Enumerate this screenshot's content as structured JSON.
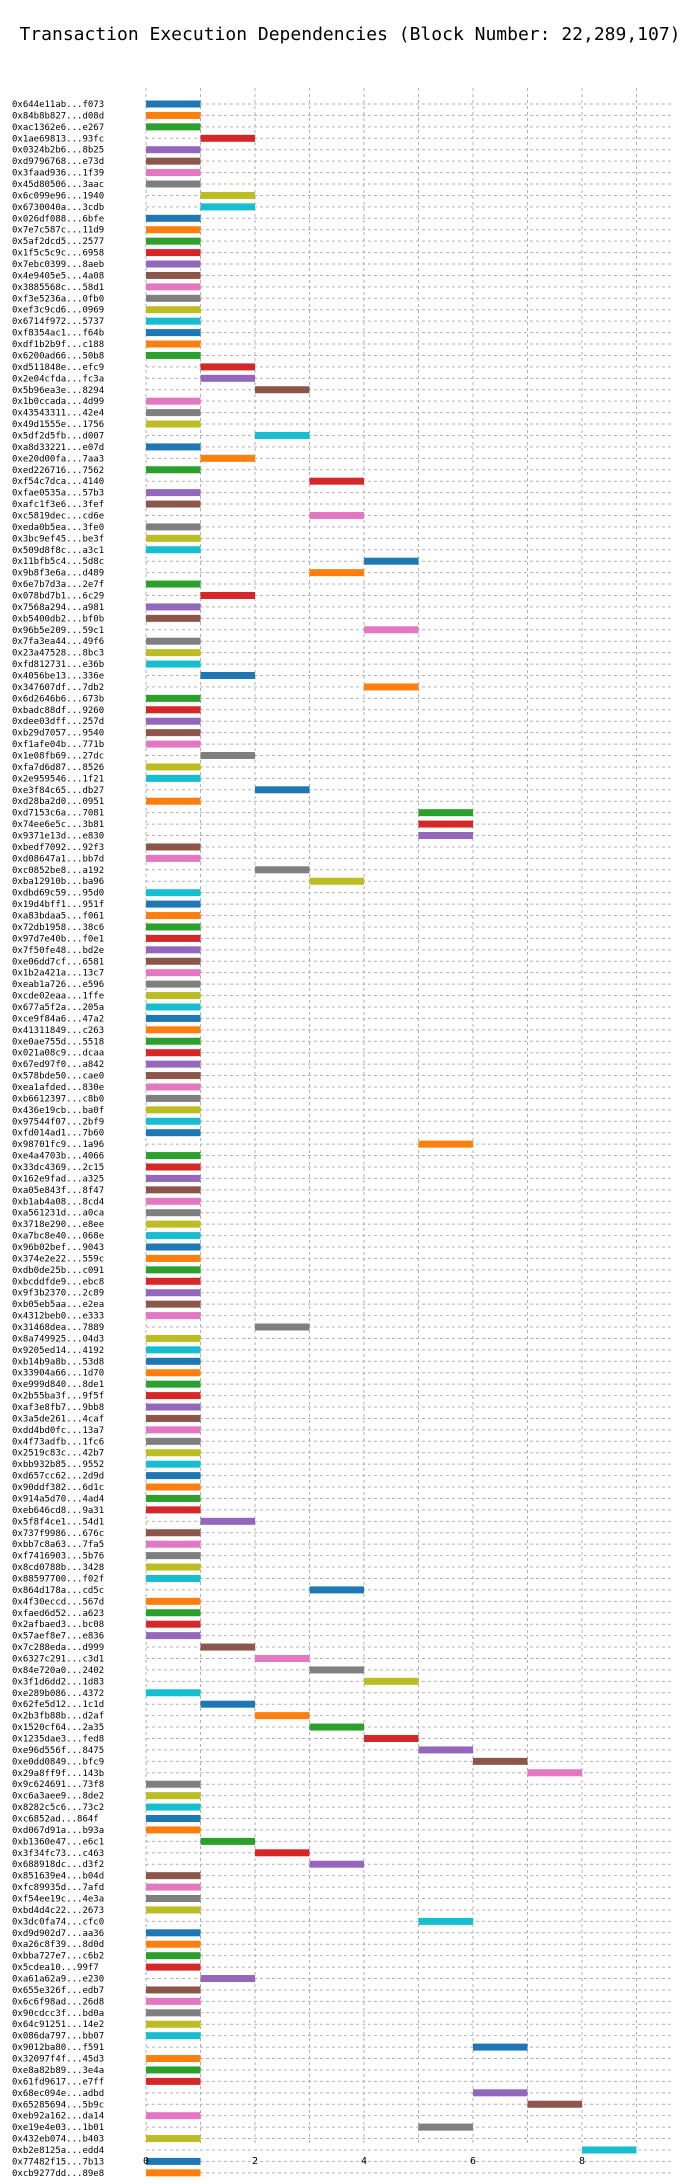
{
  "chart_data": {
    "type": "bar",
    "orientation": "horizontal-gantt",
    "title": "Transaction Execution Dependencies (Block Number: 22,289,107)",
    "xlabel": "",
    "ylabel": "",
    "xlim": [
      0,
      9.5
    ],
    "xticks": [
      0,
      2,
      4,
      6,
      8
    ],
    "grid": true,
    "palette": [
      "#1f77b4",
      "#ff7f0e",
      "#2ca02c",
      "#d62728",
      "#9467bd",
      "#8c564b",
      "#e377c2",
      "#7f7f7f",
      "#bcbd22",
      "#17becf"
    ],
    "labels": [
      "0x644e11ab...f073",
      "0x84b8b827...d08d",
      "0xac1362e6...e267",
      "0x1ae69813...93fc",
      "0x0324b2b6...8b25",
      "0xd9796768...e73d",
      "0x3faad936...1f39",
      "0x45d80506...3aac",
      "0x6c099e96...1940",
      "0x6730040a...3cdb",
      "0x026df088...6bfe",
      "0x7e7c587c...11d9",
      "0x5af2dcd5...2577",
      "0x1f5c5c9c...6958",
      "0x7ebc0399...8aeb",
      "0x4e9405e5...4a08",
      "0x3885568c...58d1",
      "0xf3e5236a...0fb0",
      "0xef3c9cd6...0969",
      "0x6714f972...5737",
      "0xf8354ac1...f64b",
      "0xdf1b2b9f...c188",
      "0x6200ad66...50b8",
      "0xd511848e...efc9",
      "0x2e04cfda...fc3a",
      "0x5b96ea3e...8294",
      "0x1b0ccada...4d99",
      "0x43543311...42e4",
      "0x49d1555e...1756",
      "0x5df2d5fb...d007",
      "0xa8d33221...e07d",
      "0xe20d00fa...7aa3",
      "0xed226716...7562",
      "0xf54c7dca...4140",
      "0xfae0535a...57b3",
      "0xafc1f3e6...3fef",
      "0xc5819dec...cd6e",
      "0xeda0b5ea...3fe0",
      "0x3bc9ef45...be3f",
      "0x509d8f8c...a3c1",
      "0x11bfb5c4...5d8c",
      "0x9b8f3e6a...d489",
      "0x6e7b7d3a...2e7f",
      "0x078bd7b1...6c29",
      "0x7568a294...a981",
      "0xb5400db2...bf0b",
      "0x96b5e209...59c1",
      "0x7fa3ea44...49f6",
      "0x23a47528...8bc3",
      "0xfd812731...e36b",
      "0x4056be13...336e",
      "0x347607df...7db2",
      "0x6d2646b6...673b",
      "0xbadc88df...9260",
      "0xdee03dff...257d",
      "0xb29d7057...9540",
      "0xf1afe04b...771b",
      "0x1e08fb69...27dc",
      "0xfa7d6d87...8526",
      "0x2e959546...1f21",
      "0xe3f84c65...db27",
      "0xd28ba2d0...0951",
      "0xd7153c6a...7081",
      "0x74ee6e5c...3b81",
      "0x9371e13d...e830",
      "0xbedf7092...92f3",
      "0xd08647a1...bb7d",
      "0xc0852be8...a192",
      "0xba12910b...ba96",
      "0xdbd69c59...95d0",
      "0x19d4bff1...951f",
      "0xa83bdaa5...f061",
      "0x72db1958...38c6",
      "0x97d7e40b...f0e1",
      "0x7f50fe48...bd2e",
      "0xe06dd7cf...6581",
      "0x1b2a421a...13c7",
      "0xeab1a726...e596",
      "0xcde02eaa...1ffe",
      "0x677a5f2a...205a",
      "0xce9f84a6...47a2",
      "0x41311849...c263",
      "0xe0ae755d...5518",
      "0x021a08c9...dcaa",
      "0x67ed97f0...a842",
      "0x578bde50...cae0",
      "0xea1afded...830e",
      "0xb6612397...c8b0",
      "0x436e19cb...ba0f",
      "0x97544f07...2bf9",
      "0xfd014ad1...7b60",
      "0x98701fc9...1a96",
      "0xe4a4703b...4066",
      "0x33dc4369...2c15",
      "0x162e9fad...a325",
      "0xa05e843f...8f47",
      "0xb1ab4a08...8cd4",
      "0xa561231d...a0ca",
      "0x3718e290...e8ee",
      "0xa7bc8e40...068e",
      "0x96b02bef...9043",
      "0x374e2e22...559c",
      "0xdb0de25b...c091",
      "0xbcddfde9...ebc8",
      "0x9f3b2370...2c89",
      "0xb05eb5aa...e2ea",
      "0x4312beb0...e333",
      "0x31468dea...7889",
      "0x8a749925...04d3",
      "0x9205ed14...4192",
      "0xb14b9a8b...53d8",
      "0x33904a66...1d70",
      "0xe999d840...8de1",
      "0x2b55ba3f...9f5f",
      "0xaf3e8fb7...9bb8",
      "0x3a5de261...4caf",
      "0xdd4bd0fc...13a7",
      "0x4f73adfb...1fc6",
      "0x2519c83c...42b7",
      "0xbb932b85...9552",
      "0xd657cc62...2d9d",
      "0x90ddf382...6d1c",
      "0x914a5d70...4ad4",
      "0xeb646cd8...9a31",
      "0x5f8f4ce1...54d1",
      "0x737f9986...676c",
      "0xbb7c8a63...7fa5",
      "0xf7416903...5b76",
      "0x8cd0788b...3428",
      "0x88597700...f02f",
      "0x864d178a...cd5c",
      "0x4f30eccd...567d",
      "0xfaed6d52...a623",
      "0x2afbaed3...bc08",
      "0x57aef8e7...e836",
      "0x7c288eda...d999",
      "0x6327c291...c3d1",
      "0x84e720a0...2402",
      "0x3f1d6dd2...1d83",
      "0xe289b086...4372",
      "0x62fe5d12...1c1d",
      "0x2b3fb88b...d2af",
      "0x1520cf64...2a35",
      "0x1235dae3...fed8",
      "0xe96d556f...8475",
      "0xe0dd0849...bfc9",
      "0x29a8ff9f...143b",
      "0x9c624691...73f8",
      "0xc6a3aee9...8de2",
      "0x8282c5c6...73c2",
      "0xc6852ad...864f",
      "0xd067d91a...b93a",
      "0xb1360e47...e6c1",
      "0x3f34fc73...c463",
      "0x688918dc...d3f2",
      "0x851639e4...b04d",
      "0xfc89935d...7afd",
      "0xf54ee19c...4e3a",
      "0xbd4d4c22...2673",
      "0x3dc0fa74...cfc0",
      "0xd9d902d7...aa36",
      "0xa26c8f39...8d0d",
      "0xbba727e7...c6b2",
      "0x5cdea10...99f7",
      "0xa61a62a9...e230",
      "0x655e326f...edb7",
      "0x6c6f98ad...26d8",
      "0x90cdcc3f...bd0a",
      "0x64c91251...14e2",
      "0x086da797...bb07",
      "0x9012ba80...f591",
      "0x32097f4f...45d3",
      "0xe8a82b89...3e4a",
      "0x61fd9617...e7ff",
      "0x68ec094e...adbd",
      "0x65285694...5b9c",
      "0xeb92a162...da14",
      "0xe19e4e03...1b01",
      "0x432eb074...b403",
      "0xb2e8125a...edd4",
      "0x77482f15...7b13",
      "0xcb9277dd...89e8"
    ],
    "starts": [
      0,
      0,
      0,
      1,
      0,
      0,
      0,
      0,
      1,
      1,
      0,
      0,
      0,
      0,
      0,
      0,
      0,
      0,
      0,
      0,
      0,
      0,
      0,
      1,
      1,
      2,
      0,
      0,
      0,
      2,
      0,
      1,
      0,
      3,
      0,
      0,
      3,
      0,
      0,
      0,
      4,
      3,
      0,
      1,
      0,
      0,
      4,
      0,
      0,
      0,
      1,
      4,
      0,
      0,
      0,
      0,
      0,
      1,
      0,
      0,
      2,
      0,
      5,
      5,
      5,
      0,
      0,
      2,
      3,
      0,
      0,
      0,
      0,
      0,
      0,
      0,
      0,
      0,
      0,
      0,
      0,
      0,
      0,
      0,
      0,
      0,
      0,
      0,
      0,
      0,
      0,
      5,
      0,
      0,
      0,
      0,
      0,
      0,
      0,
      0,
      0,
      0,
      0,
      0,
      0,
      0,
      0,
      2,
      0,
      0,
      0,
      0,
      0,
      0,
      0,
      0,
      0,
      0,
      0,
      0,
      0,
      0,
      0,
      0,
      1,
      0,
      0,
      0,
      0,
      0,
      3,
      0,
      0,
      0,
      0,
      1,
      2,
      3,
      4,
      0,
      1,
      2,
      3,
      4,
      5,
      6,
      7,
      0,
      0,
      0,
      0,
      0,
      1,
      2,
      3,
      0,
      0,
      0,
      0,
      5,
      0,
      0,
      0,
      0,
      1,
      0,
      0,
      0,
      0,
      0,
      6,
      0,
      0,
      0,
      6,
      7,
      0,
      5,
      0,
      8,
      0,
      0
    ],
    "durations": [
      1,
      1,
      1,
      1,
      1,
      1,
      1,
      1,
      1,
      1,
      1,
      1,
      1,
      1,
      1,
      1,
      1,
      1,
      1,
      1,
      1,
      1,
      1,
      1,
      1,
      1,
      1,
      1,
      1,
      1,
      1,
      1,
      1,
      1,
      1,
      1,
      1,
      1,
      1,
      1,
      1,
      1,
      1,
      1,
      1,
      1,
      1,
      1,
      1,
      1,
      1,
      1,
      1,
      1,
      1,
      1,
      1,
      1,
      1,
      1,
      1,
      1,
      1,
      1,
      1,
      1,
      1,
      1,
      1,
      1,
      1,
      1,
      1,
      1,
      1,
      1,
      1,
      1,
      1,
      1,
      1,
      1,
      1,
      1,
      1,
      1,
      1,
      1,
      1,
      1,
      1,
      1,
      1,
      1,
      1,
      1,
      1,
      1,
      1,
      1,
      1,
      1,
      1,
      1,
      1,
      1,
      1,
      1,
      1,
      1,
      1,
      1,
      1,
      1,
      1,
      1,
      1,
      1,
      1,
      1,
      1,
      1,
      1,
      1,
      1,
      1,
      1,
      1,
      1,
      1,
      1,
      1,
      1,
      1,
      1,
      1,
      1,
      1,
      1,
      1,
      1,
      1,
      1,
      1,
      1,
      1,
      1,
      1,
      1,
      1,
      1,
      1,
      1,
      1,
      1,
      1,
      1,
      1,
      1,
      1,
      1,
      1,
      1,
      1,
      1,
      1,
      1,
      1,
      1,
      1,
      1,
      1,
      1,
      1,
      1,
      1,
      1,
      1,
      1,
      1,
      1,
      1
    ]
  }
}
